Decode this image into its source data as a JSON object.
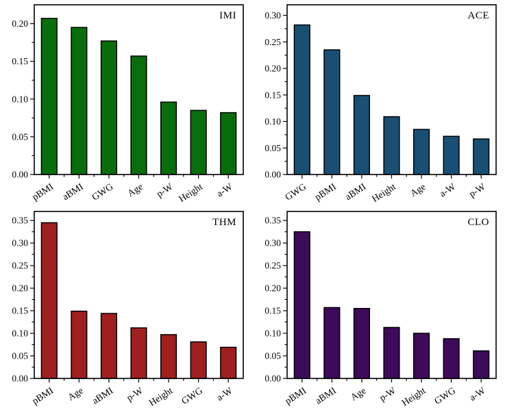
{
  "figure": {
    "background": "#ffffff",
    "text_color": "#000000",
    "frame_color": "#000000"
  },
  "chart_data": [
    {
      "type": "bar",
      "panel": "top-left",
      "annotation": "IMI",
      "bar_color": "#086e0c",
      "edge_color": "#000000",
      "categories": [
        "pBMI",
        "aBMI",
        "GWG",
        "Age",
        "p-W",
        "Height",
        "a-W"
      ],
      "values": [
        0.207,
        0.195,
        0.177,
        0.157,
        0.096,
        0.085,
        0.082
      ],
      "ylim": [
        0,
        0.225
      ],
      "yticks": [
        "0.00",
        "0.05",
        "0.10",
        "0.15",
        "0.20"
      ],
      "grid": false,
      "legend": "none"
    },
    {
      "type": "bar",
      "panel": "top-right",
      "annotation": "ACE",
      "bar_color": "#1a4f74",
      "edge_color": "#000000",
      "categories": [
        "GWG",
        "pBMI",
        "aBMI",
        "Height",
        "Age",
        "a-W",
        "p-W"
      ],
      "values": [
        0.282,
        0.235,
        0.149,
        0.109,
        0.085,
        0.072,
        0.067
      ],
      "ylim": [
        0,
        0.32
      ],
      "yticks": [
        "0.00",
        "0.05",
        "0.10",
        "0.15",
        "0.20",
        "0.25",
        "0.30"
      ],
      "grid": false,
      "legend": "none"
    },
    {
      "type": "bar",
      "panel": "bottom-left",
      "annotation": "THM",
      "bar_color": "#a01f1f",
      "edge_color": "#000000",
      "categories": [
        "pBMI",
        "Age",
        "aBMI",
        "p-W",
        "Height",
        "GWG",
        "a-W"
      ],
      "values": [
        0.345,
        0.149,
        0.144,
        0.112,
        0.097,
        0.081,
        0.069
      ],
      "ylim": [
        0,
        0.37
      ],
      "yticks": [
        "0.00",
        "0.05",
        "0.10",
        "0.15",
        "0.20",
        "0.25",
        "0.30",
        "0.35"
      ],
      "grid": false,
      "legend": "none"
    },
    {
      "type": "bar",
      "panel": "bottom-right",
      "annotation": "CLO",
      "bar_color": "#3e0a5a",
      "edge_color": "#000000",
      "categories": [
        "pBMI",
        "aBMI",
        "Age",
        "p-W",
        "Height",
        "GWG",
        "a-W"
      ],
      "values": [
        0.325,
        0.157,
        0.155,
        0.113,
        0.1,
        0.088,
        0.061
      ],
      "ylim": [
        0,
        0.37
      ],
      "yticks": [
        "0.00",
        "0.05",
        "0.10",
        "0.15",
        "0.20",
        "0.25",
        "0.30",
        "0.35"
      ],
      "grid": false,
      "legend": "none"
    }
  ]
}
